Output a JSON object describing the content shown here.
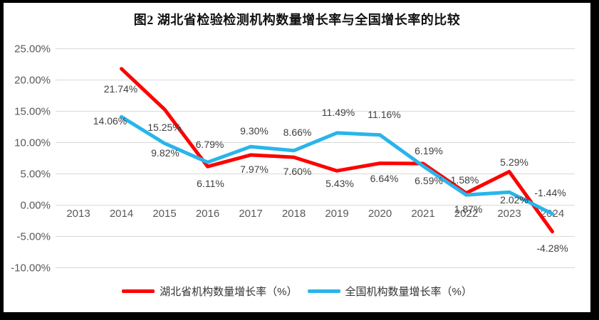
{
  "title": "图2  湖北省检验检测机构数量增长率与全国增长率的比较",
  "chart_data": {
    "type": "line",
    "title": "图2  湖北省检验检测机构数量增长率与全国增长率的比较",
    "x_years": [
      2013,
      2014,
      2015,
      2016,
      2017,
      2018,
      2019,
      2020,
      2021,
      2022,
      2023,
      2024
    ],
    "ylim": [
      -10,
      25
    ],
    "grid": "horizontal-only",
    "legend_position": "bottom-center",
    "gridline_color": "#d9d9d9",
    "axis_text_color": "#595959",
    "yticks": [
      {
        "value": 25,
        "label": "25.00%"
      },
      {
        "value": 20,
        "label": "20.00%"
      },
      {
        "value": 15,
        "label": "15.00%"
      },
      {
        "value": 10,
        "label": "10.00%"
      },
      {
        "value": 5,
        "label": "5.00%"
      },
      {
        "value": 0,
        "label": "0.00%"
      },
      {
        "value": -5,
        "label": "-5.00%"
      },
      {
        "value": -10,
        "label": "-10.00%"
      }
    ],
    "series": [
      {
        "name": "湖北省机构数量增长率（%）",
        "color": "#ff0000",
        "points": [
          {
            "year": 2014,
            "value": 21.74,
            "label": "21.74%",
            "dx": -1,
            "dy": 28
          },
          {
            "year": 2015,
            "value": 15.25,
            "label": "15.25%",
            "dx": 0,
            "dy": 25
          },
          {
            "year": 2016,
            "value": 6.11,
            "label": "6.11%",
            "dx": 4,
            "dy": 24
          },
          {
            "year": 2017,
            "value": 7.97,
            "label": "7.97%",
            "dx": 5,
            "dy": 20
          },
          {
            "year": 2018,
            "value": 7.6,
            "label": "7.60%",
            "dx": 5,
            "dy": 20
          },
          {
            "year": 2019,
            "value": 5.43,
            "label": "5.43%",
            "dx": 4,
            "dy": 18
          },
          {
            "year": 2020,
            "value": 6.64,
            "label": "6.64%",
            "dx": 6,
            "dy": 21
          },
          {
            "year": 2021,
            "value": 6.59,
            "label": "6.59%",
            "dx": 8,
            "dy": 24
          },
          {
            "year": 2022,
            "value": 1.87,
            "label": "1.87%",
            "dx": 3,
            "dy": 22
          },
          {
            "year": 2023,
            "value": 5.29,
            "label": "5.29%",
            "dx": 7,
            "dy": -13
          },
          {
            "year": 2024,
            "value": -4.28,
            "label": "-4.28%",
            "dx": 0,
            "dy": 23
          }
        ]
      },
      {
        "name": "全国机构数量增长率（%）",
        "color": "#29b5eb",
        "points": [
          {
            "year": 2014,
            "value": 14.06,
            "label": "14.06%",
            "dx": -16,
            "dy": 6
          },
          {
            "year": 2015,
            "value": 9.82,
            "label": "9.82%",
            "dx": 1,
            "dy": 13
          },
          {
            "year": 2016,
            "value": 6.79,
            "label": "6.79%",
            "dx": 3,
            "dy": -25
          },
          {
            "year": 2017,
            "value": 9.3,
            "label": "9.30%",
            "dx": 5,
            "dy": -22
          },
          {
            "year": 2018,
            "value": 8.66,
            "label": "8.66%",
            "dx": 5,
            "dy": -26
          },
          {
            "year": 2019,
            "value": 11.49,
            "label": "11.49%",
            "dx": 2,
            "dy": -29
          },
          {
            "year": 2020,
            "value": 11.16,
            "label": "11.16%",
            "dx": 6,
            "dy": -29
          },
          {
            "year": 2021,
            "value": 6.19,
            "label": "6.19%",
            "dx": 8,
            "dy": -22
          },
          {
            "year": 2022,
            "value": 1.58,
            "label": "1.58%",
            "dx": -2,
            "dy": -21
          },
          {
            "year": 2023,
            "value": 2.02,
            "label": "2.02%",
            "dx": 7,
            "dy": 11
          },
          {
            "year": 2024,
            "value": -1.44,
            "label": "-1.44%",
            "dx": -3,
            "dy": -30
          }
        ]
      }
    ]
  }
}
